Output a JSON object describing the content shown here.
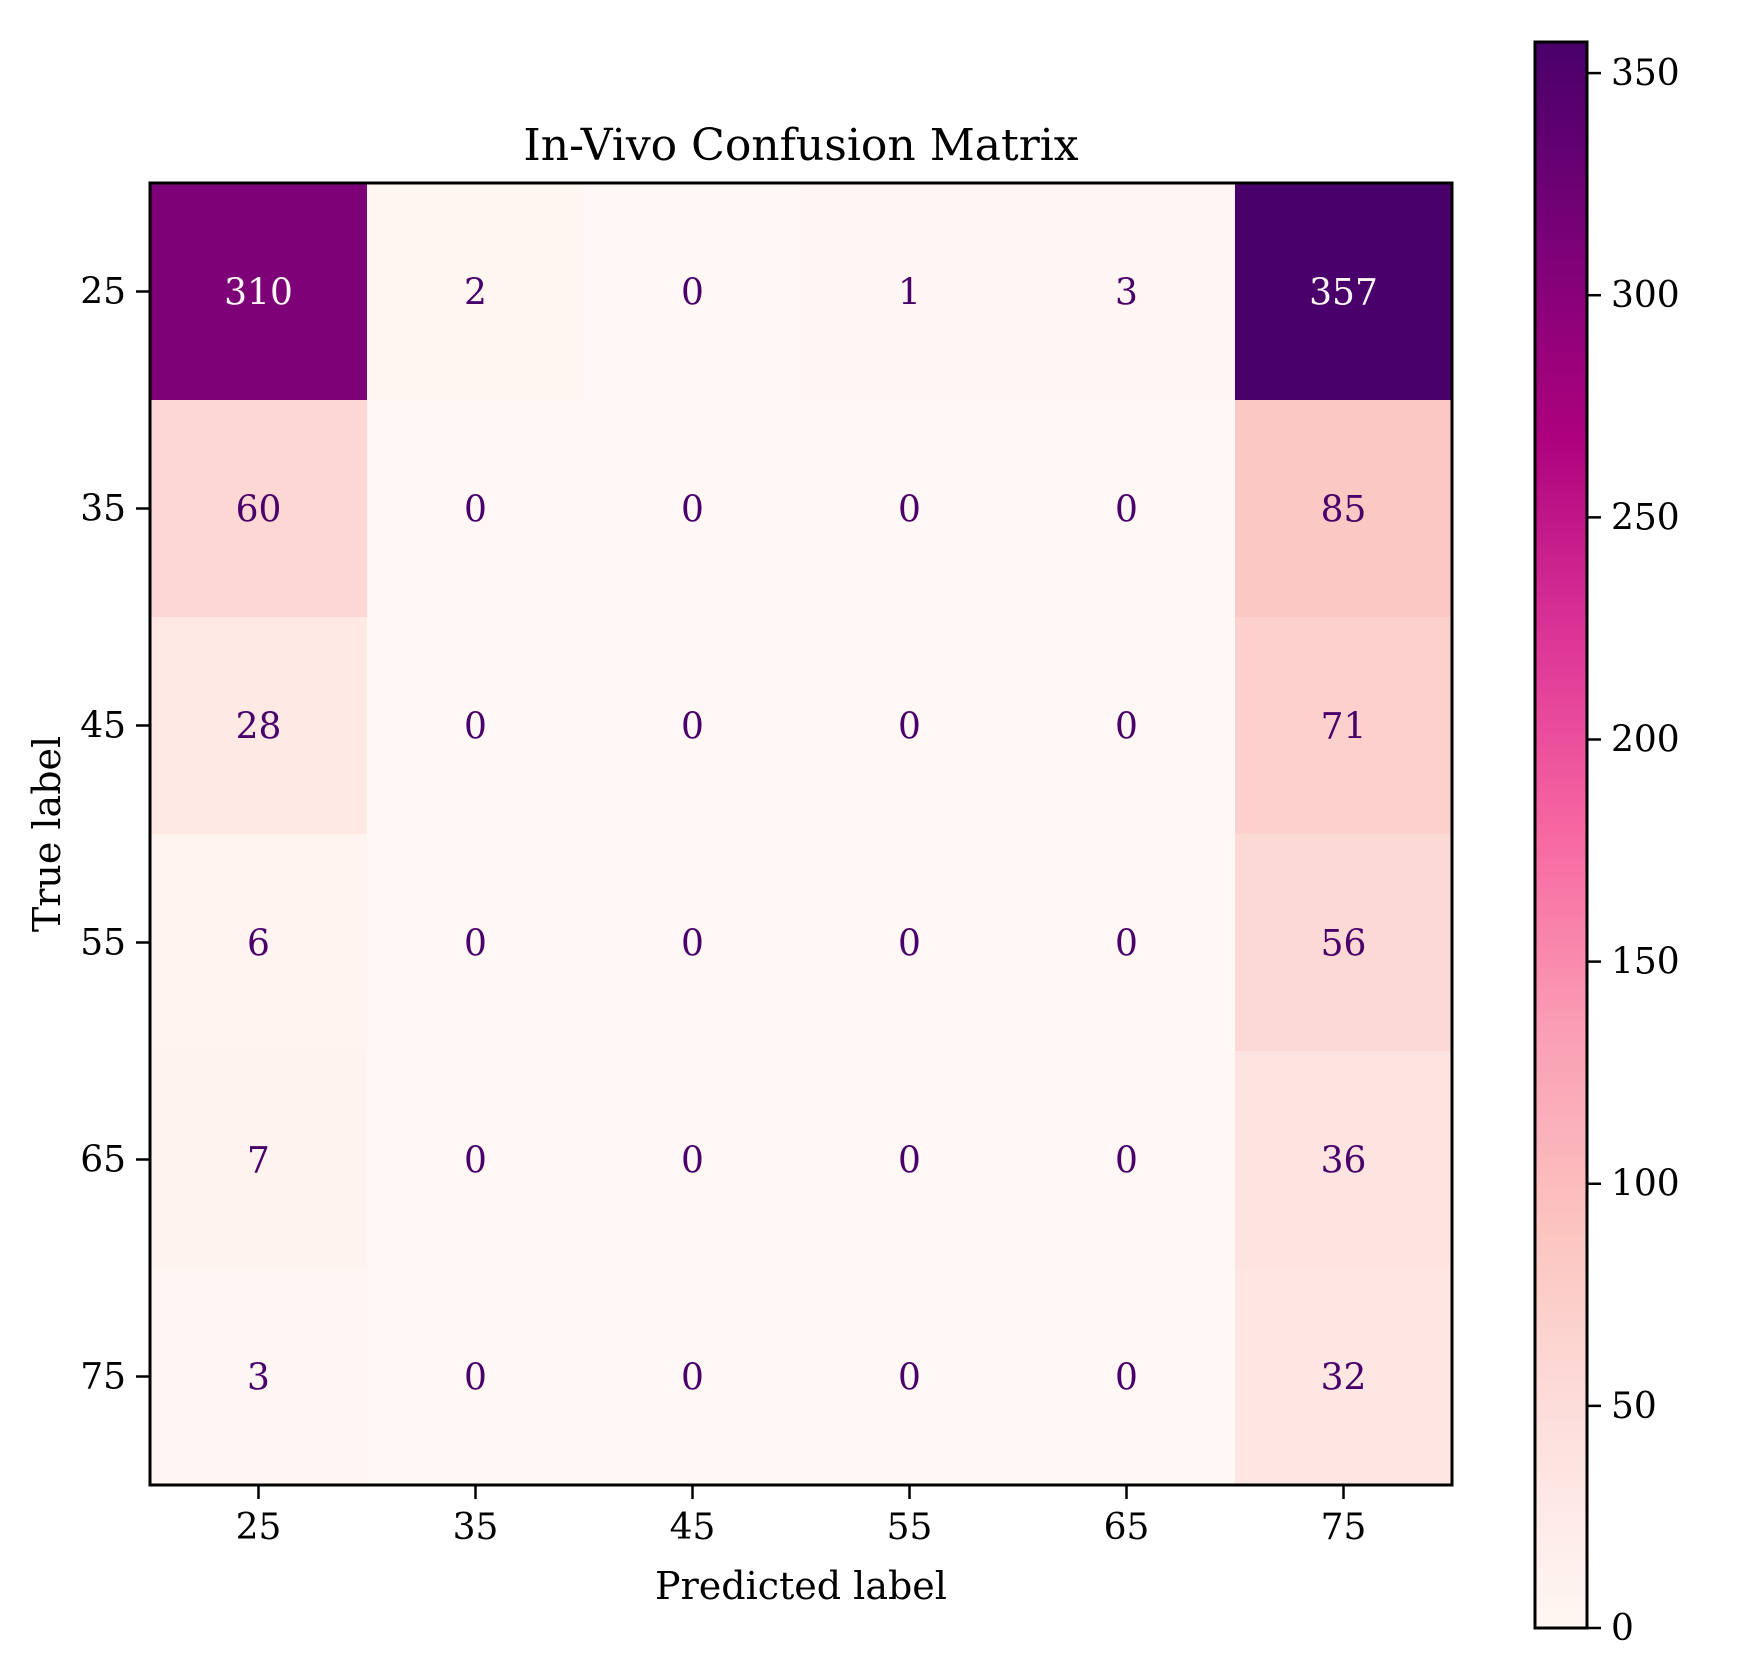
{
  "chart_data": {
    "type": "heatmap",
    "title": "In-Vivo Confusion Matrix",
    "xlabel": "Predicted label",
    "ylabel": "True label",
    "x_categories": [
      "25",
      "35",
      "45",
      "55",
      "65",
      "75"
    ],
    "y_categories": [
      "25",
      "35",
      "45",
      "55",
      "65",
      "75"
    ],
    "values": [
      [
        310,
        2,
        0,
        1,
        3,
        357
      ],
      [
        60,
        0,
        0,
        0,
        0,
        85
      ],
      [
        28,
        0,
        0,
        0,
        0,
        71
      ],
      [
        6,
        0,
        0,
        0,
        0,
        56
      ],
      [
        7,
        0,
        0,
        0,
        0,
        36
      ],
      [
        3,
        0,
        0,
        0,
        0,
        32
      ]
    ],
    "colorbar": {
      "range": [
        0,
        357
      ],
      "ticks": [
        0,
        50,
        100,
        150,
        200,
        250,
        300,
        350
      ],
      "tick_labels": [
        "0",
        "50",
        "100",
        "150",
        "200",
        "250",
        "300",
        "350"
      ],
      "colormap": [
        "#fff7f3",
        "#fde0dd",
        "#fcc5c0",
        "#fa9fb5",
        "#f768a1",
        "#dd3497",
        "#ae017e",
        "#7a0177",
        "#49006a"
      ]
    },
    "grid": false,
    "legend": "colorbar-right"
  }
}
